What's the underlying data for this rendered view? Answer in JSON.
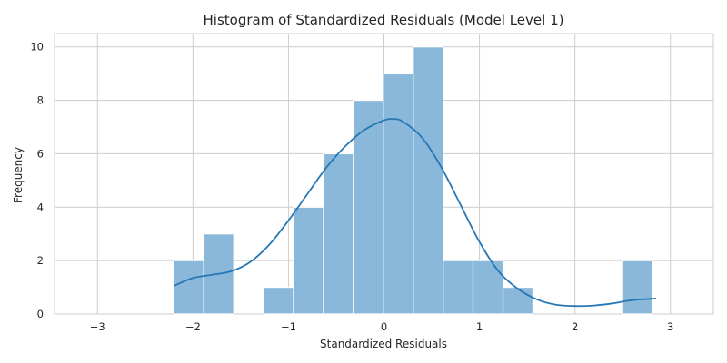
{
  "chart_data": {
    "type": "bar",
    "title": "Histogram of Standardized Residuals (Model Level 1)",
    "xlabel": "Standardized Residuals",
    "ylabel": "Frequency",
    "xlim": [
      -3.45,
      3.45
    ],
    "ylim": [
      0,
      10.5
    ],
    "x_ticks": [
      -3,
      -2,
      -1,
      0,
      1,
      2,
      3
    ],
    "y_ticks": [
      0,
      2,
      4,
      6,
      8,
      10
    ],
    "grid": true,
    "legend": "none",
    "bar_color": "#8ab8da",
    "line_color": "#2677b4",
    "bins": [
      {
        "start": -2.2,
        "end": -1.887,
        "count": 2
      },
      {
        "start": -1.887,
        "end": -1.573,
        "count": 3
      },
      {
        "start": -1.573,
        "end": -1.26,
        "count": 0
      },
      {
        "start": -1.26,
        "end": -0.947,
        "count": 1
      },
      {
        "start": -0.947,
        "end": -0.633,
        "count": 4
      },
      {
        "start": -0.633,
        "end": -0.32,
        "count": 6
      },
      {
        "start": -0.32,
        "end": -0.007,
        "count": 8
      },
      {
        "start": -0.007,
        "end": 0.307,
        "count": 9
      },
      {
        "start": 0.307,
        "end": 0.62,
        "count": 10
      },
      {
        "start": 0.62,
        "end": 0.933,
        "count": 2
      },
      {
        "start": 0.933,
        "end": 1.247,
        "count": 2
      },
      {
        "start": 1.247,
        "end": 1.56,
        "count": 1
      },
      {
        "start": 1.56,
        "end": 1.873,
        "count": 0
      },
      {
        "start": 1.873,
        "end": 2.187,
        "count": 0
      },
      {
        "start": 2.187,
        "end": 2.5,
        "count": 0
      },
      {
        "start": 2.5,
        "end": 2.813,
        "count": 2
      }
    ],
    "kde": {
      "x": [
        -2.2,
        -2.0,
        -1.8,
        -1.6,
        -1.4,
        -1.2,
        -1.0,
        -0.8,
        -0.6,
        -0.4,
        -0.2,
        0.0,
        0.1,
        0.2,
        0.4,
        0.6,
        0.8,
        1.0,
        1.2,
        1.4,
        1.6,
        1.8,
        2.0,
        2.2,
        2.4,
        2.6,
        2.85
      ],
      "y": [
        1.05,
        1.35,
        1.47,
        1.6,
        1.95,
        2.6,
        3.5,
        4.5,
        5.5,
        6.3,
        6.9,
        7.25,
        7.3,
        7.2,
        6.6,
        5.5,
        4.1,
        2.7,
        1.6,
        0.95,
        0.55,
        0.35,
        0.3,
        0.32,
        0.4,
        0.52,
        0.58
      ]
    }
  }
}
